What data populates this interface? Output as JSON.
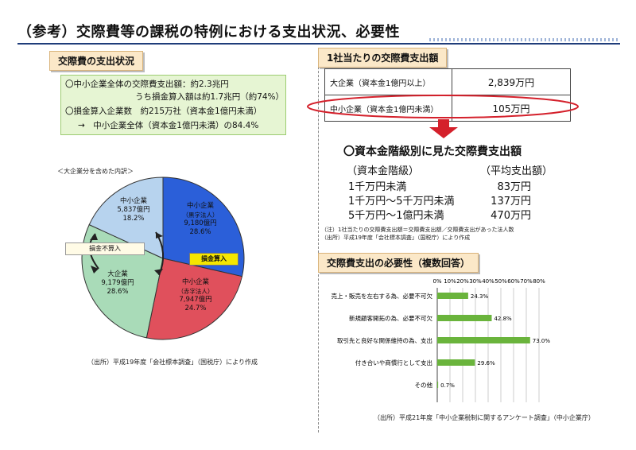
{
  "title": "（参考）交際費等の課税の特例における支出状況、必要性",
  "left": {
    "section_label": "交際費の支出状況",
    "info_lines": [
      "〇中小企業全体の交際費支出額：約2.3兆円",
      "うち損金算入額は約1.7兆円（約74%）",
      "〇損金算入企業数　約215万社（資本金1億円未満）",
      "→　中小企業全体（資本金1億円未満）の84.4%"
    ],
    "pie_caption": "＜大企業分を含めた内訳＞",
    "pie_segments": [
      {
        "name": "中小企業",
        "sub": "（黒字法人）",
        "amount": "9,180億円",
        "pct": "28.6%",
        "value": 28.6,
        "color": "#2b5fd9"
      },
      {
        "name": "中小企業",
        "sub": "（赤字法人）",
        "amount": "7,947億円",
        "pct": "24.7%",
        "value": 24.7,
        "color": "#e0505c"
      },
      {
        "name": "大企業",
        "sub": "",
        "amount": "9,179億円",
        "pct": "28.6%",
        "value": 28.6,
        "color": "#a9dbb8"
      },
      {
        "name": "中小企業",
        "sub": "",
        "amount": "5,837億円",
        "pct": "18.2%",
        "value": 18.2,
        "color": "#b7d3ee"
      }
    ],
    "tag_not_deductible": "損金不算入",
    "tag_deductible": "損金算入",
    "source": "（出所）平成19年度「会社標本調査」（国税庁）により作成"
  },
  "right": {
    "section_label1": "1社当たりの交際費支出額",
    "table": [
      {
        "name": "大企業（資本金1億円以上）",
        "value": "2,839万円"
      },
      {
        "name": "中小企業（資本金1億円未満）",
        "value": "105万円"
      }
    ],
    "heading": "〇資本金階級別に見た交際費支出額",
    "col_head_left": "（資本金階級）",
    "col_head_right": "（平均支出額）",
    "rows": [
      {
        "label": "1千万円未満",
        "value": "83万円"
      },
      {
        "label": "1千万円～5千万円未満",
        "value": "137万円"
      },
      {
        "label": "5千万円～1億円未満",
        "value": "470万円"
      }
    ],
    "note1": "（注）1社当たりの交際費支出額＝交際費支出額／交際費支出があった法人数",
    "note2": "（出所）平成19年度「会社標本調査」（国税庁）により作成",
    "section_label2": "交際費支出の必要性（複数回答）",
    "source2": "（出所）平成21年度「中小企業税制に関するアンケート調査」（中小企業庁）"
  },
  "chart_data": {
    "type": "bar",
    "orientation": "horizontal",
    "categories": [
      "売上・販売を左右する為、必要不可欠",
      "新規顧客開拓の為、必要不可欠",
      "取引先と良好な関係維持の為、支出",
      "付き合いや商慣行として支出",
      "その他"
    ],
    "values": [
      24.3,
      42.8,
      73.0,
      29.6,
      0.7
    ],
    "value_labels": [
      "24.3%",
      "42.8%",
      "73.0%",
      "29.6%",
      "0.7%"
    ],
    "ticks": [
      "0%",
      "10%",
      "20%",
      "30%",
      "40%",
      "50%",
      "60%",
      "70%",
      "80%"
    ],
    "xlim": [
      0,
      80
    ],
    "bar_color": "#6ab43c",
    "grid": true
  }
}
